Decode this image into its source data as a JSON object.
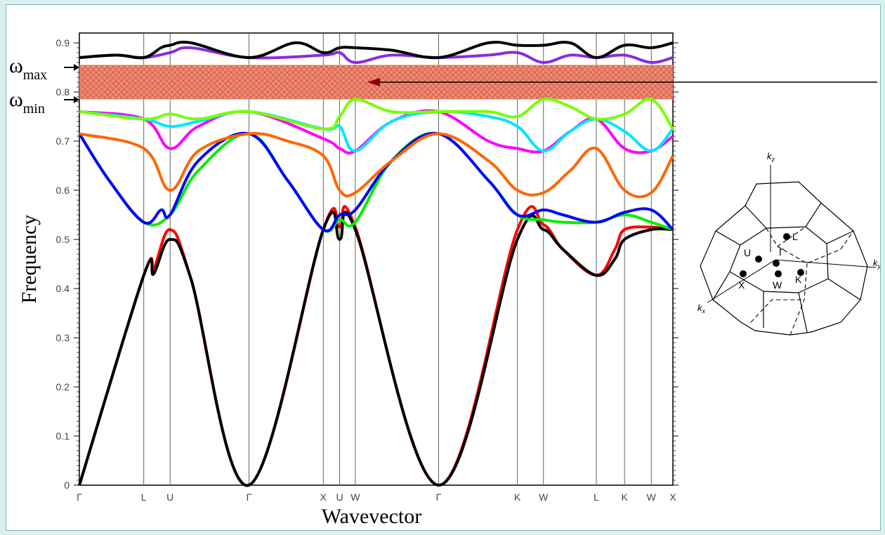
{
  "colors": {
    "band_colors": [
      "#ff0000",
      "#000000",
      "#00ee00",
      "#0000ff",
      "#ff6600",
      "#ff00ff",
      "#00e5ff",
      "#77ff00",
      "#8a2be2",
      "#000000"
    ],
    "gap_fill": "#f08a70",
    "gap_arrow": "#8b0000",
    "background_outer": "#d9f0ef"
  },
  "annotations": {
    "omega_max": {
      "symbol": "ω",
      "sub": "max"
    },
    "omega_min": {
      "symbol": "ω",
      "sub": "min"
    }
  },
  "brillouin_zone": {
    "axes": {
      "kz": "k",
      "kz_sub": "z",
      "ky": "k",
      "ky_sub": "y",
      "kx": "k",
      "kx_sub": "x"
    },
    "points": {
      "L": "L",
      "U": "U",
      "G": "Γ",
      "X": "X",
      "W": "W",
      "K": "K"
    }
  },
  "chart_data": {
    "type": "line",
    "title": "",
    "xlabel": "Wavevector",
    "ylabel": "Frequency",
    "ylim": [
      0,
      0.92
    ],
    "yticks": [
      0,
      0.1,
      0.2,
      0.3,
      0.4,
      0.5,
      0.6,
      0.7,
      0.8,
      0.9
    ],
    "ytick_labels": [
      "0",
      "0.1",
      "0.2",
      "0.3",
      "0.4",
      "0.5",
      "0.6",
      "0.7",
      "0.8",
      "0.9"
    ],
    "kpoints": [
      {
        "label": "Γ",
        "x": 0
      },
      {
        "label": "L",
        "x": 0.866
      },
      {
        "label": "U",
        "x": 1.22
      },
      {
        "label": "Γ",
        "x": 2.28
      },
      {
        "label": "X",
        "x": 3.28
      },
      {
        "label": "U",
        "x": 3.5
      },
      {
        "label": "W",
        "x": 3.71
      },
      {
        "label": "Γ",
        "x": 4.83
      },
      {
        "label": "K",
        "x": 5.89
      },
      {
        "label": "W",
        "x": 6.24
      },
      {
        "label": "L",
        "x": 6.95
      },
      {
        "label": "K",
        "x": 7.33
      },
      {
        "label": "W",
        "x": 7.69
      },
      {
        "label": "X",
        "x": 7.98
      }
    ],
    "band_gap": {
      "omega_min": 0.785,
      "omega_max": 0.855
    },
    "series": [
      {
        "values": [
          [
            0,
            0
          ],
          [
            0.866,
            0.427
          ],
          [
            1.0,
            0.44
          ],
          [
            1.22,
            0.52
          ],
          [
            1.5,
            0.42
          ],
          [
            2.28,
            0
          ],
          [
            3.28,
            0.52
          ],
          [
            3.5,
            0.525
          ],
          [
            3.71,
            0.525
          ],
          [
            4.83,
            0
          ],
          [
            5.89,
            0.52
          ],
          [
            6.24,
            0.53
          ],
          [
            6.5,
            0.48
          ],
          [
            6.95,
            0.427
          ],
          [
            7.2,
            0.48
          ],
          [
            7.33,
            0.52
          ],
          [
            7.69,
            0.525
          ],
          [
            7.98,
            0.52
          ]
        ]
      },
      {
        "values": [
          [
            0,
            0
          ],
          [
            0.866,
            0.427
          ],
          [
            1.0,
            0.43
          ],
          [
            1.22,
            0.5
          ],
          [
            1.5,
            0.42
          ],
          [
            2.28,
            0
          ],
          [
            3.28,
            0.52
          ],
          [
            3.5,
            0.5
          ],
          [
            3.71,
            0.52
          ],
          [
            4.83,
            0
          ],
          [
            5.89,
            0.5
          ],
          [
            6.24,
            0.52
          ],
          [
            6.5,
            0.48
          ],
          [
            6.95,
            0.427
          ],
          [
            7.2,
            0.46
          ],
          [
            7.33,
            0.5
          ],
          [
            7.69,
            0.52
          ],
          [
            7.98,
            0.52
          ]
        ]
      },
      {
        "values": [
          [
            0,
            0.715
          ],
          [
            0.4,
            0.62
          ],
          [
            0.866,
            0.535
          ],
          [
            1.22,
            0.55
          ],
          [
            1.6,
            0.64
          ],
          [
            2.28,
            0.715
          ],
          [
            2.8,
            0.62
          ],
          [
            3.28,
            0.52
          ],
          [
            3.5,
            0.54
          ],
          [
            3.71,
            0.535
          ],
          [
            4.2,
            0.66
          ],
          [
            4.83,
            0.715
          ],
          [
            5.5,
            0.62
          ],
          [
            5.89,
            0.55
          ],
          [
            6.24,
            0.54
          ],
          [
            6.5,
            0.535
          ],
          [
            6.95,
            0.535
          ],
          [
            7.33,
            0.55
          ],
          [
            7.69,
            0.535
          ],
          [
            7.98,
            0.52
          ]
        ]
      },
      {
        "values": [
          [
            0,
            0.715
          ],
          [
            0.4,
            0.62
          ],
          [
            0.866,
            0.535
          ],
          [
            1.1,
            0.56
          ],
          [
            1.22,
            0.55
          ],
          [
            1.6,
            0.66
          ],
          [
            2.28,
            0.715
          ],
          [
            2.8,
            0.62
          ],
          [
            3.28,
            0.52
          ],
          [
            3.5,
            0.55
          ],
          [
            3.71,
            0.56
          ],
          [
            4.2,
            0.66
          ],
          [
            4.83,
            0.715
          ],
          [
            5.5,
            0.62
          ],
          [
            5.89,
            0.55
          ],
          [
            6.24,
            0.56
          ],
          [
            6.5,
            0.55
          ],
          [
            6.95,
            0.535
          ],
          [
            7.33,
            0.555
          ],
          [
            7.69,
            0.56
          ],
          [
            7.98,
            0.52
          ]
        ]
      },
      {
        "values": [
          [
            0,
            0.715
          ],
          [
            0.866,
            0.685
          ],
          [
            1.22,
            0.6
          ],
          [
            1.6,
            0.68
          ],
          [
            2.28,
            0.715
          ],
          [
            2.8,
            0.7
          ],
          [
            3.28,
            0.67
          ],
          [
            3.5,
            0.6
          ],
          [
            3.71,
            0.595
          ],
          [
            4.2,
            0.66
          ],
          [
            4.83,
            0.715
          ],
          [
            5.5,
            0.66
          ],
          [
            5.89,
            0.6
          ],
          [
            6.24,
            0.595
          ],
          [
            6.6,
            0.64
          ],
          [
            6.95,
            0.685
          ],
          [
            7.33,
            0.6
          ],
          [
            7.69,
            0.595
          ],
          [
            7.98,
            0.67
          ]
        ]
      },
      {
        "values": [
          [
            0,
            0.76
          ],
          [
            0.866,
            0.745
          ],
          [
            1.22,
            0.685
          ],
          [
            1.6,
            0.73
          ],
          [
            2.28,
            0.76
          ],
          [
            3.28,
            0.705
          ],
          [
            3.5,
            0.685
          ],
          [
            3.71,
            0.68
          ],
          [
            4.2,
            0.74
          ],
          [
            4.83,
            0.76
          ],
          [
            5.5,
            0.7
          ],
          [
            5.89,
            0.685
          ],
          [
            6.24,
            0.68
          ],
          [
            6.6,
            0.72
          ],
          [
            6.95,
            0.745
          ],
          [
            7.33,
            0.685
          ],
          [
            7.69,
            0.68
          ],
          [
            7.98,
            0.71
          ]
        ]
      },
      {
        "values": [
          [
            0,
            0.76
          ],
          [
            0.866,
            0.745
          ],
          [
            1.22,
            0.73
          ],
          [
            1.6,
            0.74
          ],
          [
            2.28,
            0.76
          ],
          [
            3.28,
            0.725
          ],
          [
            3.5,
            0.73
          ],
          [
            3.71,
            0.68
          ],
          [
            4.2,
            0.74
          ],
          [
            4.83,
            0.76
          ],
          [
            5.5,
            0.75
          ],
          [
            5.89,
            0.73
          ],
          [
            6.24,
            0.68
          ],
          [
            6.6,
            0.72
          ],
          [
            6.95,
            0.745
          ],
          [
            7.33,
            0.72
          ],
          [
            7.69,
            0.68
          ],
          [
            7.98,
            0.725
          ]
        ]
      },
      {
        "values": [
          [
            0,
            0.76
          ],
          [
            0.866,
            0.745
          ],
          [
            1.22,
            0.755
          ],
          [
            1.6,
            0.745
          ],
          [
            2.28,
            0.76
          ],
          [
            3.28,
            0.725
          ],
          [
            3.5,
            0.75
          ],
          [
            3.71,
            0.785
          ],
          [
            4.2,
            0.76
          ],
          [
            4.83,
            0.76
          ],
          [
            5.5,
            0.76
          ],
          [
            5.89,
            0.75
          ],
          [
            6.24,
            0.785
          ],
          [
            6.6,
            0.77
          ],
          [
            6.95,
            0.745
          ],
          [
            7.33,
            0.755
          ],
          [
            7.69,
            0.785
          ],
          [
            7.98,
            0.725
          ]
        ]
      },
      {
        "values": [
          [
            0,
            0.87
          ],
          [
            0.5,
            0.875
          ],
          [
            0.866,
            0.87
          ],
          [
            1.22,
            0.88
          ],
          [
            1.5,
            0.89
          ],
          [
            2.28,
            0.87
          ],
          [
            3.28,
            0.875
          ],
          [
            3.5,
            0.88
          ],
          [
            3.71,
            0.86
          ],
          [
            4.2,
            0.875
          ],
          [
            4.83,
            0.87
          ],
          [
            5.5,
            0.875
          ],
          [
            5.89,
            0.88
          ],
          [
            6.24,
            0.86
          ],
          [
            6.6,
            0.875
          ],
          [
            6.95,
            0.87
          ],
          [
            7.33,
            0.875
          ],
          [
            7.69,
            0.86
          ],
          [
            7.98,
            0.87
          ]
        ]
      },
      {
        "values": [
          [
            0,
            0.87
          ],
          [
            0.5,
            0.875
          ],
          [
            0.866,
            0.87
          ],
          [
            1.1,
            0.89
          ],
          [
            1.22,
            0.895
          ],
          [
            1.5,
            0.9
          ],
          [
            2.28,
            0.87
          ],
          [
            2.9,
            0.9
          ],
          [
            3.28,
            0.88
          ],
          [
            3.5,
            0.89
          ],
          [
            3.71,
            0.89
          ],
          [
            4.2,
            0.885
          ],
          [
            4.83,
            0.87
          ],
          [
            5.5,
            0.9
          ],
          [
            5.89,
            0.895
          ],
          [
            6.24,
            0.895
          ],
          [
            6.6,
            0.9
          ],
          [
            6.95,
            0.87
          ],
          [
            7.33,
            0.895
          ],
          [
            7.69,
            0.89
          ],
          [
            7.98,
            0.9
          ]
        ]
      }
    ]
  }
}
